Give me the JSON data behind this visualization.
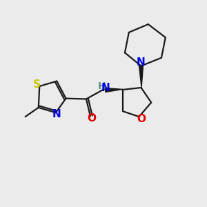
{
  "bg_color": "#ebebeb",
  "bond_color": "#1a1a1a",
  "S_color": "#c8c800",
  "N_color": "#0000e0",
  "O_color": "#e00000",
  "H_color": "#5a9090",
  "line_width": 1.6,
  "font_size": 10.5,
  "figsize": [
    3.0,
    3.0
  ],
  "dpi": 100,
  "xlim": [
    0,
    10
  ],
  "ylim": [
    0,
    10
  ]
}
